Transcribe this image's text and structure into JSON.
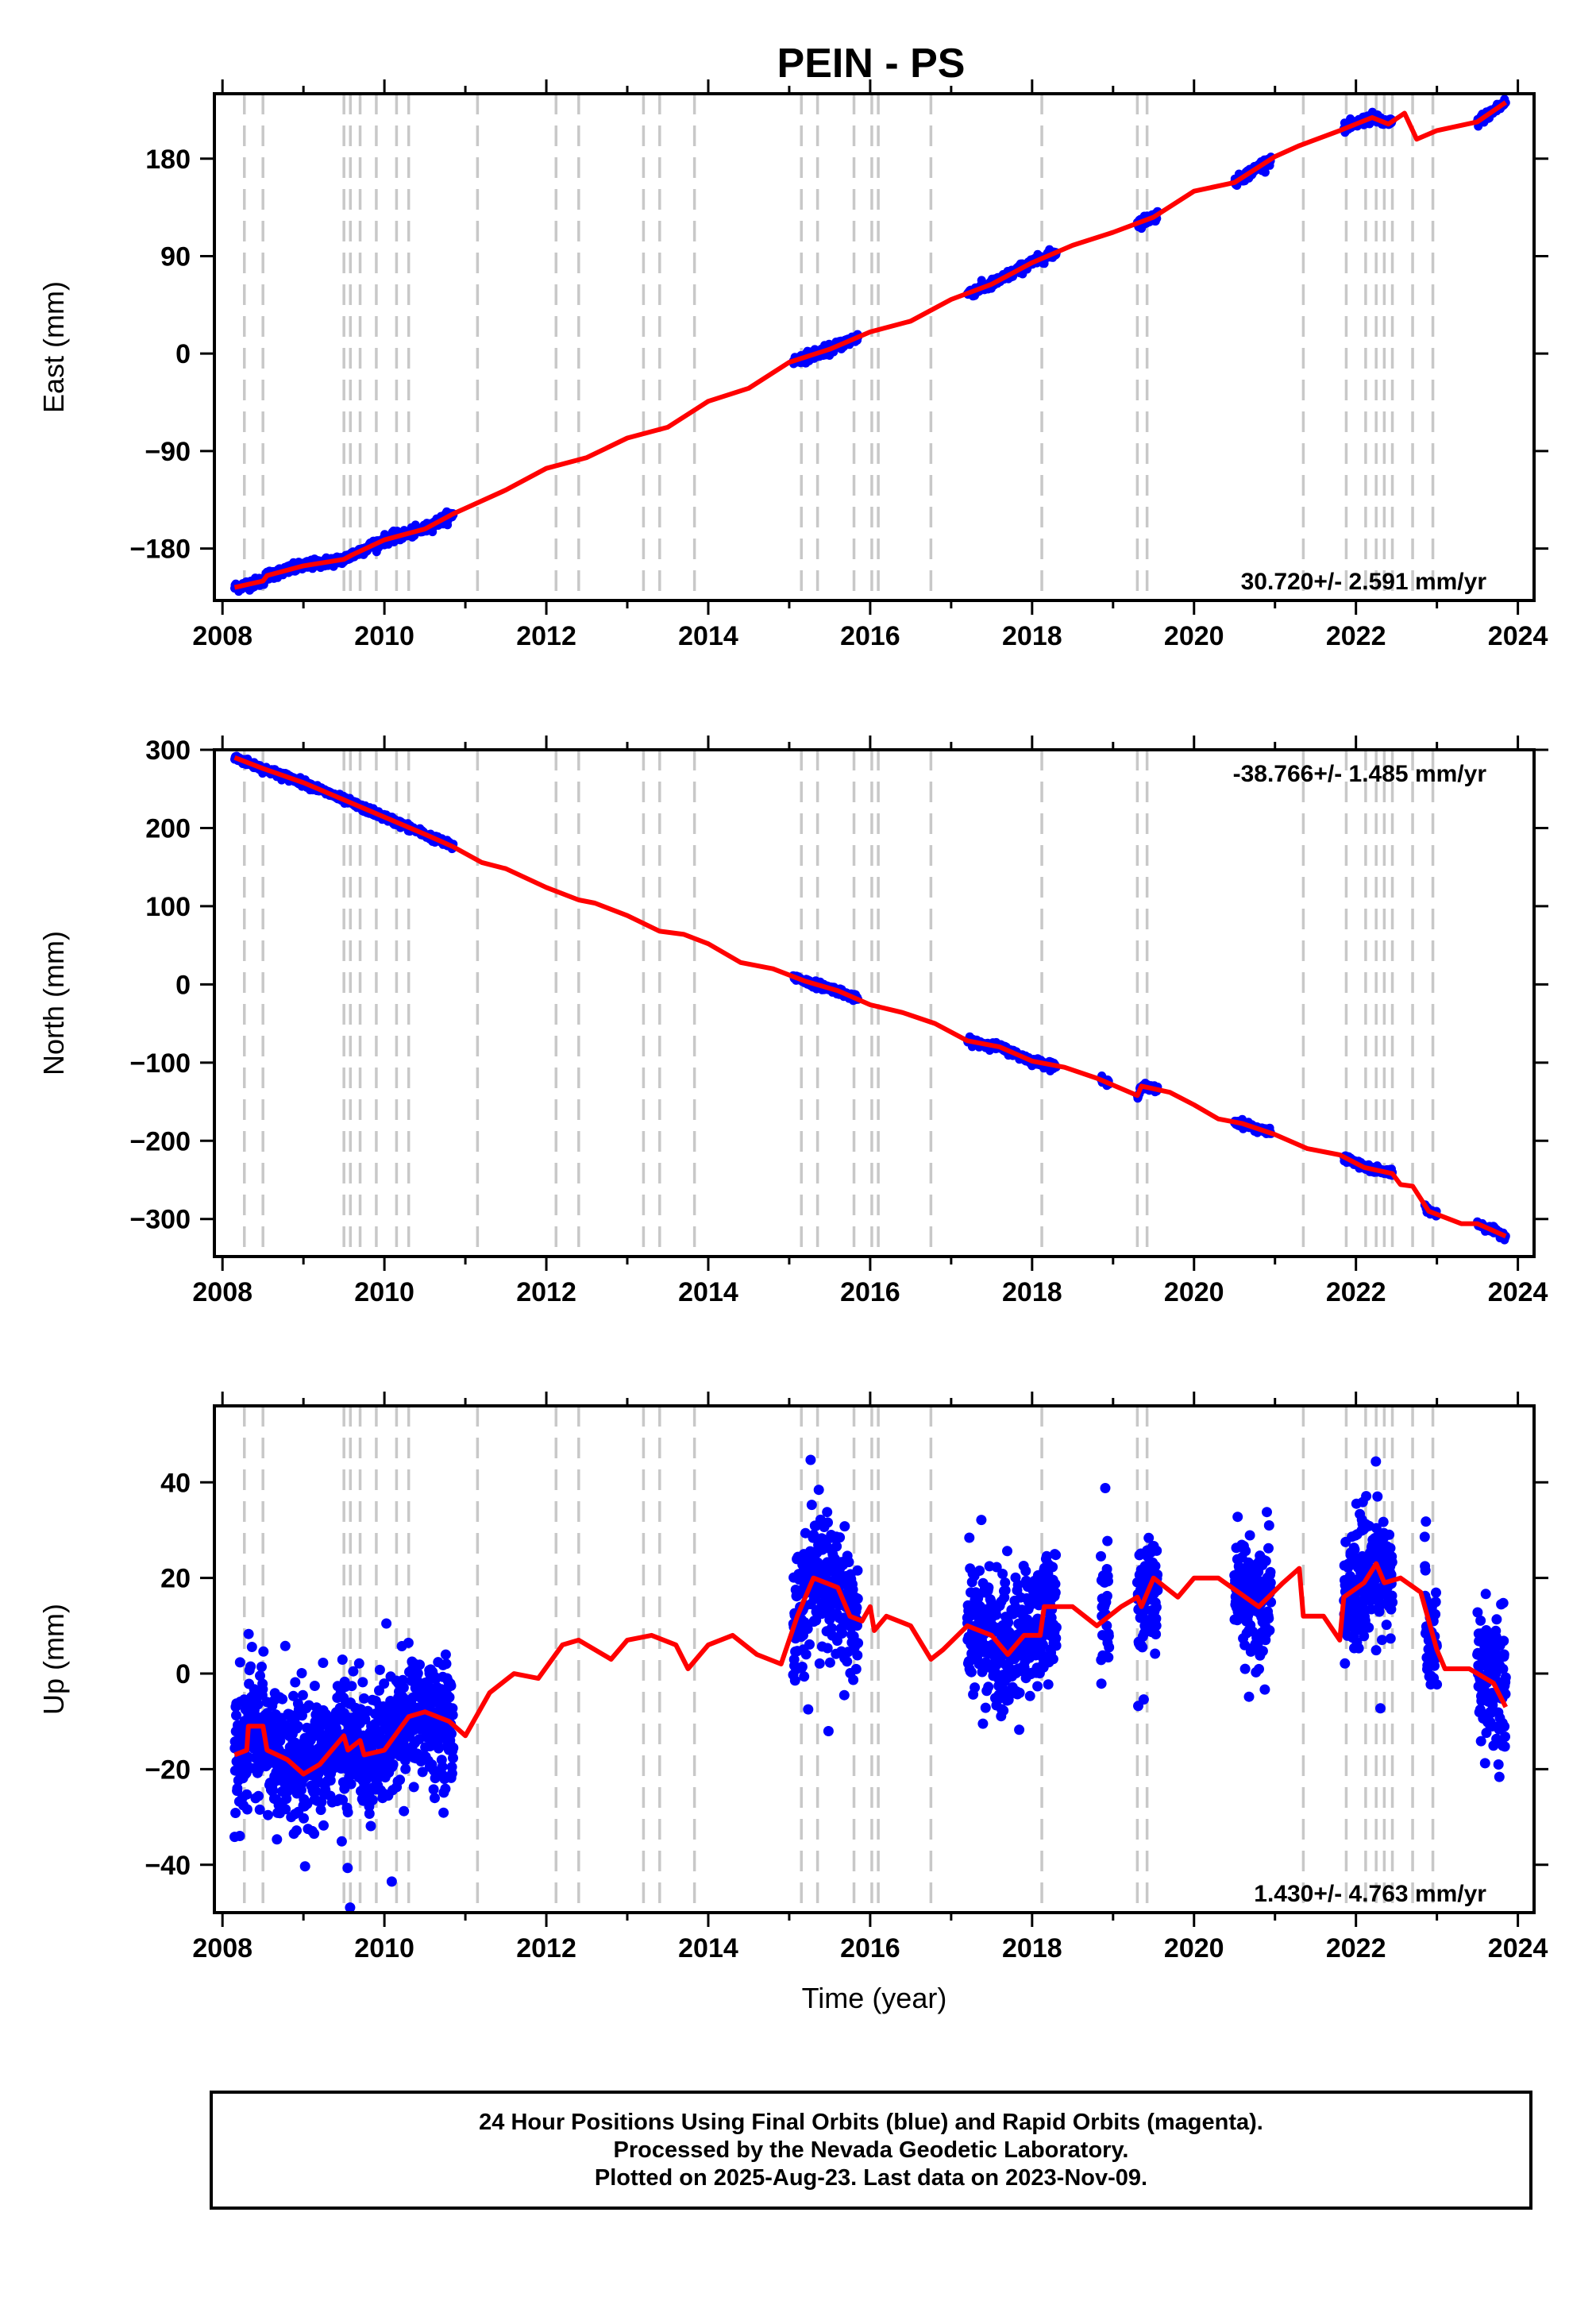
{
  "title": "PEIN - PS",
  "chart_data": [
    {
      "type": "scatter",
      "name": "east",
      "ylabel": "East (mm)",
      "xlabel": "",
      "xlim": [
        2007.9,
        2024.2
      ],
      "ylim": [
        -228,
        240
      ],
      "xticks": [
        2008,
        2010,
        2012,
        2014,
        2016,
        2018,
        2020,
        2022,
        2024
      ],
      "yticks": [
        -180,
        -90,
        0,
        90,
        180
      ],
      "velocity_label": "30.720+/- 2.591 mm/yr",
      "velocity_pos": "bottom-right",
      "series_colors": {
        "observed": "#0000ff",
        "model": "#ff0000",
        "breaks": "#c8c8c8"
      },
      "observed_segments": [
        [
          2008.15,
          2010.85
        ],
        [
          2015.05,
          2015.85
        ],
        [
          2017.2,
          2018.3
        ],
        [
          2019.3,
          2019.55
        ],
        [
          2020.5,
          2020.95
        ],
        [
          2021.85,
          2022.45
        ],
        [
          2023.5,
          2023.85
        ]
      ],
      "model_path": [
        [
          2008.15,
          -216
        ],
        [
          2008.5,
          -210
        ],
        [
          2008.55,
          -205
        ],
        [
          2009,
          -196
        ],
        [
          2009.5,
          -190
        ],
        [
          2009.6,
          -186
        ],
        [
          2010,
          -172
        ],
        [
          2010.5,
          -162
        ],
        [
          2010.85,
          -148
        ],
        [
          2011.5,
          -126
        ],
        [
          2012,
          -106
        ],
        [
          2012.5,
          -96
        ],
        [
          2013,
          -78
        ],
        [
          2013.5,
          -68
        ],
        [
          2014,
          -44
        ],
        [
          2014.5,
          -32
        ],
        [
          2015,
          -8
        ],
        [
          2015.5,
          4
        ],
        [
          2016,
          20
        ],
        [
          2016.5,
          30
        ],
        [
          2017,
          50
        ],
        [
          2017.5,
          64
        ],
        [
          2018,
          84
        ],
        [
          2018.5,
          100
        ],
        [
          2019,
          112
        ],
        [
          2019.5,
          126
        ],
        [
          2020,
          150
        ],
        [
          2020.5,
          158
        ],
        [
          2021,
          182
        ],
        [
          2021.3,
          192
        ],
        [
          2021.8,
          206
        ],
        [
          2022.2,
          218
        ],
        [
          2022.4,
          212
        ],
        [
          2022.6,
          222
        ],
        [
          2022.75,
          198
        ],
        [
          2023,
          206
        ],
        [
          2023.5,
          214
        ],
        [
          2023.85,
          232
        ]
      ],
      "model_noise": 6
    },
    {
      "type": "scatter",
      "name": "north",
      "ylabel": "North (mm)",
      "xlabel": "",
      "xlim": [
        2007.9,
        2024.2
      ],
      "ylim": [
        -348,
        300
      ],
      "xticks": [
        2008,
        2010,
        2012,
        2014,
        2016,
        2018,
        2020,
        2022,
        2024
      ],
      "yticks": [
        -300,
        -200,
        -100,
        0,
        100,
        200,
        300
      ],
      "velocity_label": "-38.766+/- 1.485 mm/yr",
      "velocity_pos": "top-right",
      "series_colors": {
        "observed": "#0000ff",
        "model": "#ff0000",
        "breaks": "#c8c8c8"
      },
      "observed_segments": [
        [
          2008.15,
          2010.85
        ],
        [
          2015.05,
          2015.85
        ],
        [
          2017.2,
          2018.3
        ],
        [
          2018.85,
          2018.95
        ],
        [
          2019.3,
          2019.55
        ],
        [
          2020.5,
          2020.95
        ],
        [
          2021.85,
          2022.45
        ],
        [
          2022.85,
          2023.0
        ],
        [
          2023.5,
          2023.85
        ]
      ],
      "model_path": [
        [
          2008.15,
          290
        ],
        [
          2008.5,
          276
        ],
        [
          2009,
          258
        ],
        [
          2009.5,
          236
        ],
        [
          2010,
          214
        ],
        [
          2010.5,
          192
        ],
        [
          2010.85,
          176
        ],
        [
          2011.2,
          156
        ],
        [
          2011.5,
          148
        ],
        [
          2012,
          124
        ],
        [
          2012.4,
          108
        ],
        [
          2012.6,
          104
        ],
        [
          2013,
          88
        ],
        [
          2013.4,
          68
        ],
        [
          2013.7,
          64
        ],
        [
          2014,
          52
        ],
        [
          2014.4,
          28
        ],
        [
          2014.8,
          20
        ],
        [
          2015.2,
          4
        ],
        [
          2015.6,
          -8
        ],
        [
          2016,
          -26
        ],
        [
          2016.4,
          -36
        ],
        [
          2016.8,
          -50
        ],
        [
          2017.2,
          -72
        ],
        [
          2017.6,
          -80
        ],
        [
          2018,
          -98
        ],
        [
          2018.4,
          -106
        ],
        [
          2018.8,
          -120
        ],
        [
          2019.3,
          -142
        ],
        [
          2019.35,
          -130
        ],
        [
          2019.7,
          -138
        ],
        [
          2020,
          -154
        ],
        [
          2020.3,
          -172
        ],
        [
          2020.6,
          -178
        ],
        [
          2021,
          -192
        ],
        [
          2021.4,
          -210
        ],
        [
          2021.8,
          -218
        ],
        [
          2022.1,
          -234
        ],
        [
          2022.45,
          -242
        ],
        [
          2022.55,
          -256
        ],
        [
          2022.7,
          -258
        ],
        [
          2022.9,
          -290
        ],
        [
          2023.3,
          -306
        ],
        [
          2023.5,
          -306
        ],
        [
          2023.85,
          -322
        ]
      ],
      "model_noise": 0
    },
    {
      "type": "scatter",
      "name": "up",
      "ylabel": "Up (mm)",
      "xlabel": "Time (year)",
      "xlim": [
        2007.9,
        2024.2
      ],
      "ylim": [
        -50,
        56
      ],
      "xticks": [
        2008,
        2010,
        2012,
        2014,
        2016,
        2018,
        2020,
        2022,
        2024
      ],
      "yticks": [
        -40,
        -20,
        0,
        20,
        40
      ],
      "velocity_label": "1.430+/- 4.763 mm/yr",
      "velocity_pos": "bottom-right",
      "series_colors": {
        "observed": "#0000ff",
        "model": "#ff0000",
        "breaks": "#c8c8c8"
      },
      "observed_segments": [
        [
          2008.15,
          2010.85
        ],
        [
          2015.05,
          2015.85
        ],
        [
          2017.2,
          2018.3
        ],
        [
          2018.85,
          2018.95
        ],
        [
          2019.3,
          2019.55
        ],
        [
          2020.5,
          2020.95
        ],
        [
          2021.85,
          2022.45
        ],
        [
          2022.85,
          2023.0
        ],
        [
          2023.5,
          2023.85
        ]
      ],
      "model_path": [
        [
          2008.15,
          -17
        ],
        [
          2008.3,
          -16
        ],
        [
          2008.32,
          -11
        ],
        [
          2008.5,
          -11
        ],
        [
          2008.55,
          -16
        ],
        [
          2008.8,
          -18
        ],
        [
          2009,
          -21
        ],
        [
          2009.2,
          -19
        ],
        [
          2009.5,
          -13
        ],
        [
          2009.55,
          -16
        ],
        [
          2009.7,
          -14
        ],
        [
          2009.75,
          -17
        ],
        [
          2010,
          -16
        ],
        [
          2010.3,
          -9
        ],
        [
          2010.5,
          -8
        ],
        [
          2010.8,
          -10
        ],
        [
          2011,
          -13
        ],
        [
          2011.3,
          -4
        ],
        [
          2011.6,
          0
        ],
        [
          2011.9,
          -1
        ],
        [
          2012.2,
          6
        ],
        [
          2012.4,
          7
        ],
        [
          2012.8,
          3
        ],
        [
          2013,
          7
        ],
        [
          2013.3,
          8
        ],
        [
          2013.6,
          6
        ],
        [
          2013.75,
          1
        ],
        [
          2014,
          6
        ],
        [
          2014.3,
          8
        ],
        [
          2014.6,
          4
        ],
        [
          2014.9,
          2
        ],
        [
          2015.1,
          12
        ],
        [
          2015.3,
          20
        ],
        [
          2015.6,
          18
        ],
        [
          2015.75,
          12
        ],
        [
          2015.9,
          11
        ],
        [
          2016,
          14
        ],
        [
          2016.05,
          9
        ],
        [
          2016.2,
          12
        ],
        [
          2016.5,
          10
        ],
        [
          2016.75,
          3
        ],
        [
          2016.9,
          5
        ],
        [
          2017.2,
          10
        ],
        [
          2017.5,
          8
        ],
        [
          2017.7,
          4
        ],
        [
          2017.9,
          8
        ],
        [
          2018.1,
          8
        ],
        [
          2018.15,
          14
        ],
        [
          2018.5,
          14
        ],
        [
          2018.8,
          10
        ],
        [
          2019.1,
          14
        ],
        [
          2019.3,
          16
        ],
        [
          2019.35,
          14
        ],
        [
          2019.5,
          20
        ],
        [
          2019.8,
          16
        ],
        [
          2020,
          20
        ],
        [
          2020.3,
          20
        ],
        [
          2020.55,
          17
        ],
        [
          2020.8,
          14
        ],
        [
          2021.1,
          19
        ],
        [
          2021.3,
          22
        ],
        [
          2021.35,
          12
        ],
        [
          2021.6,
          12
        ],
        [
          2021.8,
          7
        ],
        [
          2021.85,
          16
        ],
        [
          2022.1,
          19
        ],
        [
          2022.25,
          23
        ],
        [
          2022.35,
          19
        ],
        [
          2022.55,
          20
        ],
        [
          2022.8,
          17
        ],
        [
          2023,
          5
        ],
        [
          2023.1,
          1
        ],
        [
          2023.4,
          1
        ],
        [
          2023.7,
          -2
        ],
        [
          2023.85,
          -7
        ]
      ],
      "model_noise": 0
    }
  ],
  "break_lines_years": [
    2008.27,
    2008.5,
    2009.5,
    2009.58,
    2009.7,
    2009.9,
    2010.15,
    2010.3,
    2011.15,
    2012.12,
    2012.4,
    2013.2,
    2013.4,
    2013.83,
    2015.15,
    2015.35,
    2015.8,
    2016.02,
    2016.1,
    2016.75,
    2018.12,
    2019.3,
    2019.42,
    2021.35,
    2021.88,
    2022.12,
    2022.25,
    2022.35,
    2022.45,
    2022.7,
    2022.95
  ],
  "footer": {
    "line1": "24 Hour Positions Using Final Orbits (blue) and Rapid Orbits (magenta).",
    "line2": "Processed by the Nevada Geodetic Laboratory.",
    "line3": "Plotted on 2025-Aug-23. Last data on 2023-Nov-09."
  }
}
